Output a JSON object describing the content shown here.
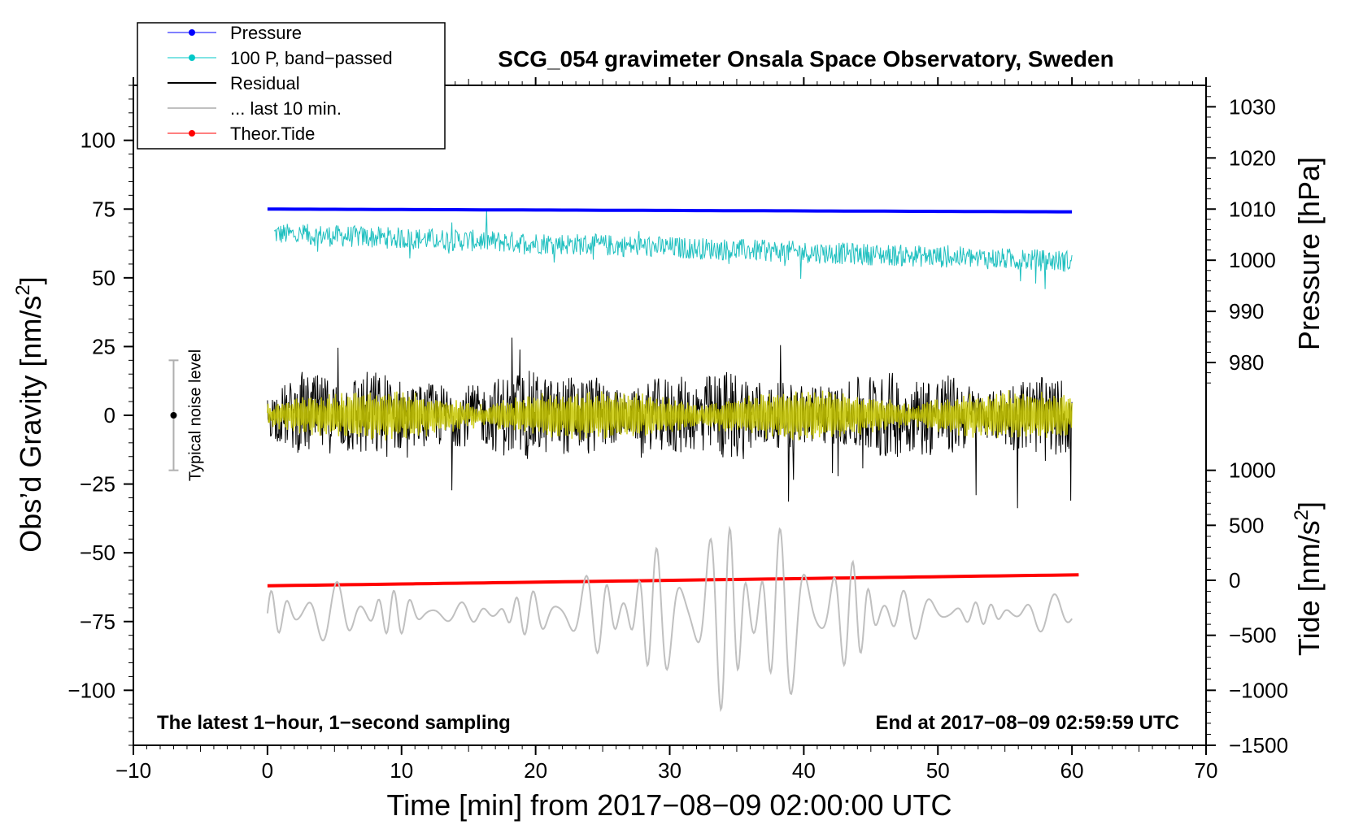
{
  "chart_data": {
    "type": "line",
    "title": "SCG_054 gravimeter Onsala Space Observatory, Sweden",
    "xlabel": "Time [min] from 2017−08−09 02:00:00 UTC",
    "ylabel_left": "Obs’d Gravity [nm/s",
    "ylabel_left_sup": "2",
    "ylabel_left_end": "]",
    "ylabel_right_pressure": "Pressure [hPa]",
    "ylabel_right_tide": "Tide [nm/s",
    "ylabel_right_tide_sup": "2",
    "ylabel_right_tide_end": "]",
    "caption_left": "The latest 1−hour, 1−second sampling",
    "caption_right": "End at 2017−08−09 02:59:59 UTC",
    "noise_label": "Typical noise level",
    "noise_level": {
      "x": -7,
      "center": 0,
      "half_range": 20
    },
    "xlim": [
      -10,
      70
    ],
    "ylim_left": [
      -120,
      120
    ],
    "x_ticks": [
      -10,
      0,
      10,
      20,
      30,
      40,
      50,
      60,
      70
    ],
    "x_tick_labels": [
      "−10",
      "0",
      "10",
      "20",
      "30",
      "40",
      "50",
      "60",
      "70"
    ],
    "y_ticks_left": [
      100,
      75,
      50,
      25,
      0,
      -25,
      -50,
      -75,
      -100
    ],
    "y_tick_labels_left": [
      "100",
      "75",
      "50",
      "25",
      "0",
      "−25",
      "−50",
      "−75",
      "−100"
    ],
    "pressure_axis": {
      "ticks": [
        1030,
        1020,
        1010,
        1000,
        990,
        980
      ],
      "labels": [
        "1030",
        "1020",
        "1010",
        "1000",
        "990",
        "980"
      ],
      "left_at_1010": 75,
      "left_per_hPa": 1.86
    },
    "tide_axis": {
      "ticks": [
        1000,
        500,
        0,
        -500,
        -1000,
        -1500
      ],
      "labels": [
        "1000",
        "500",
        "0",
        "−500",
        "−1000",
        "−1500"
      ],
      "left_at_0": -60,
      "left_per_unit": 0.04
    },
    "legend": [
      {
        "label": "Pressure",
        "color": "#0000ff",
        "marker": "dot"
      },
      {
        "label": "100 P, band−passed",
        "color": "#00c8c8",
        "marker": "dot"
      },
      {
        "label": "Residual",
        "color": "#000000",
        "marker": "line"
      },
      {
        "label": "... last 10 min.",
        "color": "#c0c0c0",
        "marker": "line"
      },
      {
        "label": "Theor.Tide",
        "color": "#ff0000",
        "marker": "dot"
      }
    ],
    "series": [
      {
        "name": "Pressure",
        "color": "#0000ff",
        "x_range": [
          0,
          60
        ],
        "y_start": 75,
        "y_end": 74
      },
      {
        "name": "100 P, band−passed",
        "color": "#20c0c0",
        "x_range": [
          0.5,
          60
        ],
        "baseline_start": 66,
        "baseline_end": 56,
        "amplitude": 4
      },
      {
        "name": "Residual",
        "color": "#000000",
        "x_range": [
          0,
          60
        ],
        "center": 0,
        "typical_amplitude": 12,
        "max_amplitude": 34
      },
      {
        "name": "Residual (yellow overlay)",
        "color": "#c8c800",
        "x_range": [
          0,
          60
        ],
        "center": 0,
        "typical_amplitude": 6
      },
      {
        "name": "Theor.Tide",
        "color": "#ff0000",
        "x_range": [
          0,
          60.5
        ],
        "y_start": -62,
        "y_end": -58
      },
      {
        "name": "... last 10 min.",
        "color": "#c0c0c0",
        "x_range": [
          0,
          60
        ],
        "center": -72,
        "typical_amplitude": 10,
        "max_amplitude": 42
      }
    ]
  }
}
